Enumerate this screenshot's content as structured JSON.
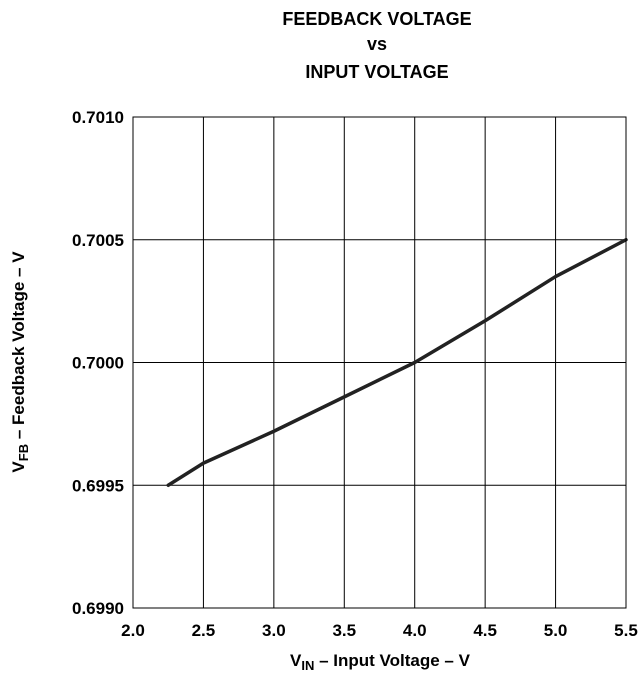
{
  "chart_data": {
    "type": "line",
    "title_lines": [
      "FEEDBACK VOLTAGE",
      "vs",
      "INPUT VOLTAGE"
    ],
    "xlabel": {
      "main": "V",
      "sub": "IN",
      "rest": " – Input Voltage – V"
    },
    "ylabel": {
      "main": "V",
      "sub": "FB",
      "rest": " – Feedback Voltage – V"
    },
    "xlim": [
      2.0,
      5.5
    ],
    "ylim": [
      0.699,
      0.701
    ],
    "x_ticks": [
      "2.0",
      "2.5",
      "3.0",
      "3.5",
      "4.0",
      "4.5",
      "5.0",
      "5.5"
    ],
    "y_ticks": [
      "0.6990",
      "0.6995",
      "0.7000",
      "0.7005",
      "0.7010"
    ],
    "grid": true,
    "series": [
      {
        "x": [
          2.25,
          2.5,
          3.0,
          3.5,
          4.0,
          4.5,
          5.0,
          5.5
        ],
        "y": [
          0.6995,
          0.69959,
          0.69972,
          0.69986,
          0.7,
          0.70017,
          0.70035,
          0.7005
        ],
        "color": "#222222"
      }
    ]
  }
}
